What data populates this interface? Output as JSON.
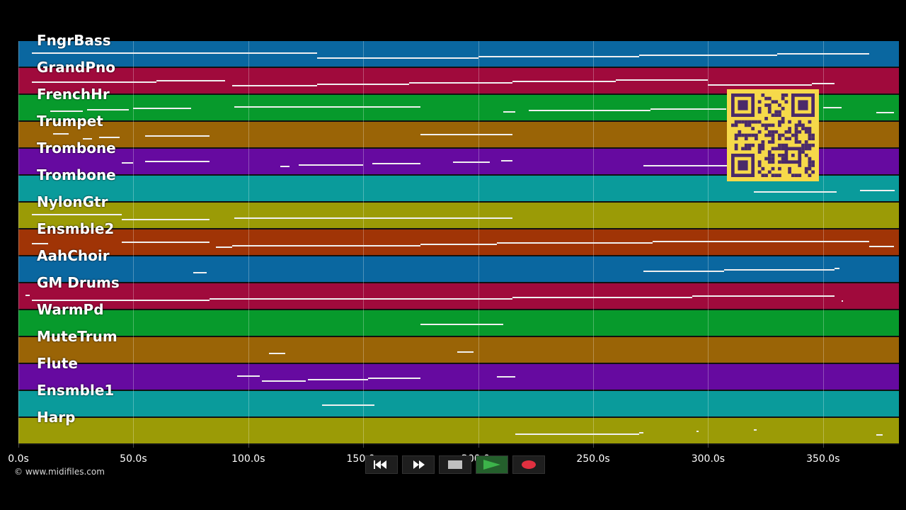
{
  "tracks": [
    {
      "label": "FngrBass",
      "color": "#0a67a0"
    },
    {
      "label": "GrandPno",
      "color": "#a00a3c"
    },
    {
      "label": "FrenchHr",
      "color": "#079a2c"
    },
    {
      "label": "Trumpet",
      "color": "#9a6406"
    },
    {
      "label": "Trombone",
      "color": "#660aa0"
    },
    {
      "label": "Trombone",
      "color": "#0a9b9b"
    },
    {
      "label": "NylonGtr",
      "color": "#9b9b06"
    },
    {
      "label": "Ensmble2",
      "color": "#a03406"
    },
    {
      "label": "AahChoir",
      "color": "#0a67a0"
    },
    {
      "label": "GM Drums",
      "color": "#a00a3c"
    },
    {
      "label": "WarmPd",
      "color": "#079a2c"
    },
    {
      "label": "MuteTrum",
      "color": "#9a6406"
    },
    {
      "label": "Flute",
      "color": "#660aa0"
    },
    {
      "label": "Ensmble1",
      "color": "#0a9b9b"
    },
    {
      "label": "Harp",
      "color": "#9b9b06"
    }
  ],
  "timeline": {
    "max_seconds": 383,
    "ticks": [
      "0.0s",
      "50.0s",
      "100.0s",
      "150.0s",
      "200.0s",
      "250.0s",
      "300.0s",
      "350.0s"
    ],
    "tick_values": [
      0,
      50,
      100,
      150,
      200,
      250,
      300,
      350
    ]
  },
  "notes": [
    [
      [
        6,
        130
      ],
      [
        130,
        200
      ],
      [
        200,
        270
      ],
      [
        270,
        330
      ],
      [
        330,
        370
      ]
    ],
    [
      [
        6,
        60
      ],
      [
        60,
        90
      ],
      [
        93,
        130
      ],
      [
        130,
        170
      ],
      [
        170,
        215
      ],
      [
        215,
        260
      ],
      [
        260,
        300
      ],
      [
        300,
        345
      ],
      [
        345,
        355
      ]
    ],
    [
      [
        14,
        28
      ],
      [
        30,
        48
      ],
      [
        50,
        75
      ],
      [
        94,
        175
      ],
      [
        211,
        216
      ],
      [
        222,
        275
      ],
      [
        275,
        308
      ],
      [
        350,
        358
      ],
      [
        373,
        381
      ]
    ],
    [
      [
        15,
        22
      ],
      [
        28,
        32
      ],
      [
        35,
        44
      ],
      [
        55,
        83
      ],
      [
        175,
        215
      ]
    ],
    [
      [
        45,
        50
      ],
      [
        55,
        83
      ],
      [
        114,
        118
      ],
      [
        122,
        150
      ],
      [
        154,
        175
      ],
      [
        189,
        205
      ],
      [
        210,
        215
      ],
      [
        272,
        310
      ]
    ],
    [
      [
        320,
        356
      ],
      [
        366,
        381
      ]
    ],
    [
      [
        6,
        45
      ],
      [
        45,
        83
      ],
      [
        94,
        215
      ]
    ],
    [
      [
        6,
        13
      ],
      [
        45,
        83
      ],
      [
        86,
        93
      ],
      [
        93,
        175
      ],
      [
        175,
        208
      ],
      [
        208,
        276
      ],
      [
        276,
        370
      ],
      [
        370,
        381
      ]
    ],
    [
      [
        76,
        82
      ],
      [
        272,
        307
      ],
      [
        307,
        355
      ],
      [
        355,
        357
      ]
    ],
    [
      [
        3,
        5
      ],
      [
        6,
        83
      ],
      [
        83,
        215
      ],
      [
        215,
        293
      ],
      [
        293,
        355
      ],
      [
        358,
        357
      ]
    ],
    [
      [
        175,
        211
      ]
    ],
    [
      [
        109,
        116
      ],
      [
        191,
        198
      ]
    ],
    [
      [
        95,
        105
      ],
      [
        106,
        125
      ],
      [
        126,
        152
      ],
      [
        152,
        175
      ],
      [
        208,
        216
      ]
    ],
    [
      [
        132,
        155
      ]
    ],
    [
      [
        216,
        270
      ],
      [
        270,
        272
      ],
      [
        295,
        296
      ],
      [
        320,
        321
      ],
      [
        373,
        376
      ]
    ]
  ],
  "copyright": "© www.midifiles.com",
  "transport": {
    "buttons": [
      "rewind",
      "fast-forward",
      "stop",
      "play",
      "record"
    ]
  },
  "colors": {
    "background": "#000000",
    "qr_background": "#f6d94a",
    "qr_foreground": "#4a2a6a",
    "play": "#3cb34a",
    "record": "#e03040"
  }
}
